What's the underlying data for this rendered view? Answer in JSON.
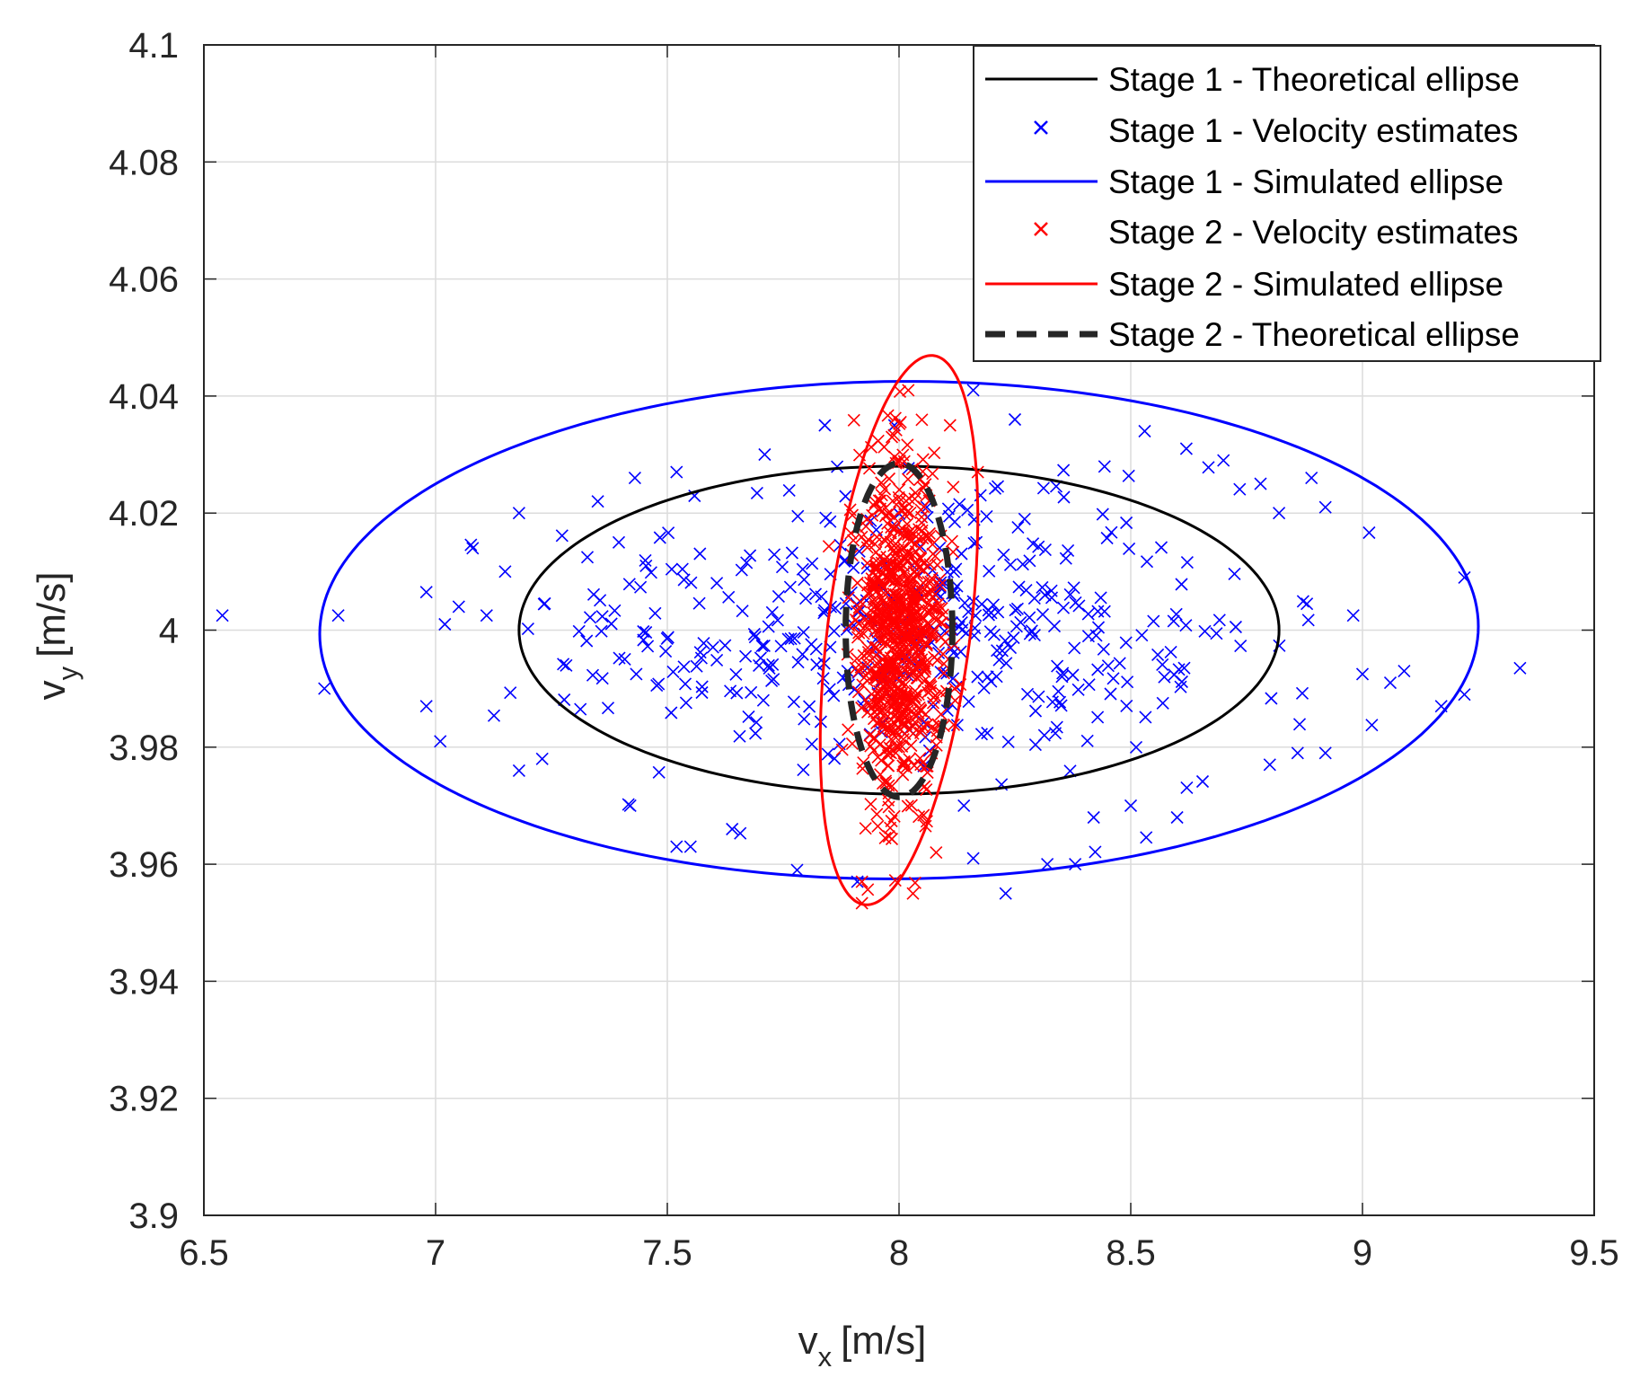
{
  "chart_data": {
    "type": "scatter",
    "title": "",
    "xlabel": "v",
    "xlabel_sub": "x",
    "xlabel_unit": "[m/s]",
    "ylabel": "v",
    "ylabel_sub": "y",
    "ylabel_unit": "[m/s]",
    "xlim": [
      6.5,
      9.5
    ],
    "ylim": [
      3.9,
      4.1
    ],
    "xticks": [
      6.5,
      7,
      7.5,
      8,
      8.5,
      9,
      9.5
    ],
    "xtick_labels": [
      "6.5",
      "7",
      "7.5",
      "8",
      "8.5",
      "9",
      "9.5"
    ],
    "yticks": [
      3.9,
      3.92,
      3.94,
      3.96,
      3.98,
      4.0,
      4.02,
      4.04,
      4.06,
      4.08,
      4.1
    ],
    "ytick_labels": [
      "3.9",
      "3.92",
      "3.94",
      "3.96",
      "3.98",
      "4",
      "4.02",
      "4.04",
      "4.06",
      "4.08",
      "4.1"
    ],
    "grid": true,
    "legend_position": "top-right",
    "colors": {
      "stage1_theoretical": "#000000",
      "stage1_points": "#0000ff",
      "stage1_simulated": "#0000ff",
      "stage2_points": "#ff0000",
      "stage2_simulated": "#ff0000",
      "stage2_theoretical": "#262626",
      "grid": "#dcdcdc",
      "axes": "#262626"
    },
    "series": [
      {
        "name": "Stage 1 - Theoretical ellipse",
        "kind": "ellipse",
        "style": "solid",
        "center": [
          8.0,
          4.0
        ],
        "semi_axes": [
          0.82,
          0.028
        ],
        "tilt": 0.0
      },
      {
        "name": "Stage 1 - Velocity estimates",
        "kind": "points",
        "marker": "x",
        "center": [
          8.0,
          4.0
        ],
        "std": [
          0.38,
          0.012
        ],
        "count": 420,
        "seed": 17,
        "points": [
          [
            6.54,
            4.0025
          ],
          [
            6.76,
            3.99
          ],
          [
            6.79,
            4.0025
          ],
          [
            6.98,
            4.0065
          ],
          [
            6.98,
            3.987
          ],
          [
            7.01,
            3.981
          ],
          [
            7.02,
            4.001
          ],
          [
            7.05,
            4.004
          ],
          [
            7.08,
            4.014
          ],
          [
            7.11,
            4.0025
          ],
          [
            7.15,
            4.01
          ],
          [
            7.18,
            4.02
          ],
          [
            7.18,
            3.976
          ],
          [
            7.23,
            3.978
          ],
          [
            7.35,
            4.022
          ],
          [
            7.42,
            3.97
          ],
          [
            7.43,
            4.026
          ],
          [
            7.52,
            4.027
          ],
          [
            7.52,
            3.963
          ],
          [
            7.55,
            3.963
          ],
          [
            7.64,
            3.966
          ],
          [
            7.71,
            4.03
          ],
          [
            7.78,
            3.959
          ],
          [
            7.84,
            4.035
          ],
          [
            7.91,
            3.957
          ],
          [
            7.99,
            4.035
          ],
          [
            8.14,
            3.97
          ],
          [
            8.16,
            4.041
          ],
          [
            8.16,
            3.961
          ],
          [
            8.23,
            3.955
          ],
          [
            8.25,
            4.036
          ],
          [
            8.32,
            3.96
          ],
          [
            8.38,
            3.96
          ],
          [
            8.42,
            3.968
          ],
          [
            8.5,
            3.97
          ],
          [
            8.53,
            4.034
          ],
          [
            8.6,
            3.968
          ],
          [
            8.62,
            4.031
          ],
          [
            8.7,
            4.029
          ],
          [
            8.78,
            4.025
          ],
          [
            8.8,
            3.977
          ],
          [
            8.82,
            4.02
          ],
          [
            8.86,
            3.979
          ],
          [
            8.88,
            4.0045
          ],
          [
            8.89,
            4.026
          ],
          [
            8.92,
            4.021
          ],
          [
            8.92,
            3.979
          ],
          [
            8.98,
            4.0025
          ],
          [
            9.0,
            3.9925
          ],
          [
            9.06,
            3.991
          ],
          [
            9.09,
            3.993
          ],
          [
            9.17,
            3.987
          ],
          [
            9.22,
            4.009
          ],
          [
            9.22,
            3.989
          ],
          [
            9.34,
            3.9935
          ]
        ]
      },
      {
        "name": "Stage 1 - Simulated ellipse",
        "kind": "ellipse",
        "style": "solid",
        "center": [
          8.0,
          4.0
        ],
        "semi_axes": [
          1.25,
          0.0425
        ],
        "tilt": 0.015
      },
      {
        "name": "Stage 2 - Velocity estimates",
        "kind": "points",
        "marker": "x",
        "center": [
          8.0,
          4.0
        ],
        "std": [
          0.045,
          0.014
        ],
        "count": 750,
        "seed": 29,
        "points": [
          [
            8.02,
            4.041
          ],
          [
            8.11,
            4.035
          ],
          [
            8.17,
            4.027
          ],
          [
            7.92,
            3.957
          ],
          [
            8.03,
            3.955
          ],
          [
            8.08,
            3.962
          ],
          [
            7.89,
            3.983
          ],
          [
            8.12,
            3.99
          ]
        ]
      },
      {
        "name": "Stage 2 - Simulated ellipse",
        "kind": "ellipse",
        "style": "solid",
        "center": [
          8.0,
          4.0
        ],
        "semi_axes": [
          0.17,
          0.0428
        ],
        "tilt": 0.45
      },
      {
        "name": "Stage 2 - Theoretical ellipse",
        "kind": "ellipse",
        "style": "dashed",
        "center": [
          8.0,
          4.0
        ],
        "semi_axes": [
          0.115,
          0.0285
        ],
        "tilt": 0.0
      }
    ]
  }
}
